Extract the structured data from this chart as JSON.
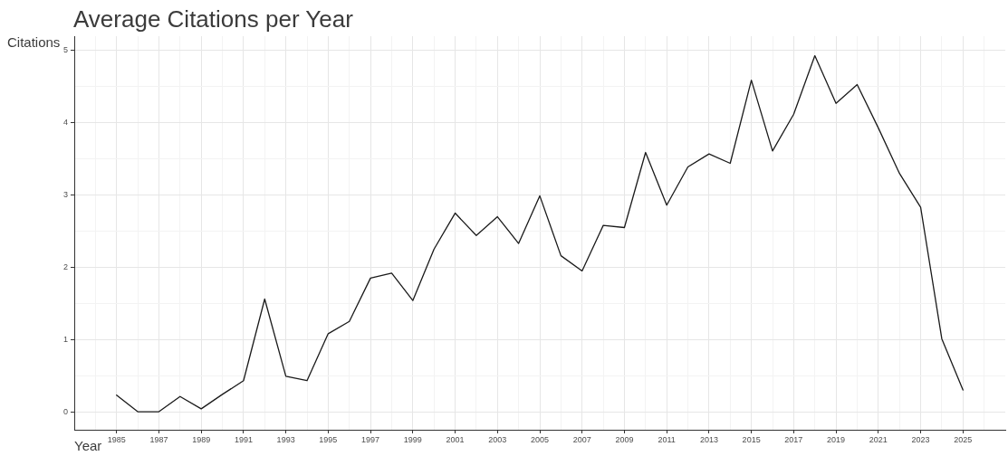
{
  "chart_data": {
    "type": "line",
    "title": "Average Citations per Year",
    "xlabel": "Year",
    "ylabel": "Citations",
    "x": [
      1985,
      1986,
      1987,
      1988,
      1989,
      1990,
      1991,
      1992,
      1993,
      1994,
      1995,
      1996,
      1997,
      1998,
      1999,
      2000,
      2001,
      2002,
      2003,
      2004,
      2005,
      2006,
      2007,
      2008,
      2009,
      2010,
      2011,
      2012,
      2013,
      2014,
      2015,
      2016,
      2017,
      2018,
      2019,
      2020,
      2021,
      2022,
      2023,
      2024,
      2025
    ],
    "values": [
      0.23,
      0,
      0,
      0.21,
      0.04,
      0.24,
      0.43,
      1.56,
      0.49,
      0.43,
      1.08,
      1.25,
      1.85,
      1.92,
      1.54,
      2.25,
      2.75,
      2.44,
      2.7,
      2.33,
      2.99,
      2.16,
      1.95,
      2.58,
      2.55,
      3.59,
      2.86,
      3.39,
      3.57,
      3.44,
      4.59,
      3.61,
      4.12,
      4.93,
      4.27,
      4.53,
      3.93,
      3.3,
      2.83,
      1.01,
      0.3
    ],
    "color": "#1a1a1a",
    "marker": "none",
    "line_style": "solid",
    "grid": true,
    "xlim": [
      1983,
      2027
    ],
    "ylim": [
      -0.25,
      5.2
    ],
    "xticks": [
      {
        "value": 1984,
        "label": null
      },
      1985,
      {
        "value": 1986,
        "label": null
      },
      1987,
      {
        "value": 1988,
        "label": null
      },
      1989,
      {
        "value": 1990,
        "label": null
      },
      1991,
      {
        "value": 1992,
        "label": null
      },
      1993,
      {
        "value": 1994,
        "label": null
      },
      1995,
      {
        "value": 1996,
        "label": null
      },
      1997,
      {
        "value": 1998,
        "label": null
      },
      1999,
      {
        "value": 2000,
        "label": null
      },
      2001,
      {
        "value": 2002,
        "label": null
      },
      2003,
      {
        "value": 2004,
        "label": null
      },
      2005,
      {
        "value": 2006,
        "label": null
      },
      2007,
      {
        "value": 2008,
        "label": null
      },
      2009,
      {
        "value": 2010,
        "label": null
      },
      2011,
      {
        "value": 2012,
        "label": null
      },
      2013,
      {
        "value": 2014,
        "label": null
      },
      2015,
      {
        "value": 2016,
        "label": null
      },
      2017,
      {
        "value": 2018,
        "label": null
      },
      2019,
      {
        "value": 2020,
        "label": null
      },
      2021,
      {
        "value": 2022,
        "label": null
      },
      2023,
      {
        "value": 2024,
        "label": null
      },
      2025,
      {
        "value": 2026,
        "label": null
      }
    ],
    "yticks": [
      0,
      {
        "value": 0.5,
        "label": null
      },
      1,
      {
        "value": 1.5,
        "label": null
      },
      2,
      {
        "value": 2.5,
        "label": null
      },
      3,
      {
        "value": 3.5,
        "label": null
      },
      4,
      {
        "value": 4.5,
        "label": null
      },
      5
    ]
  }
}
